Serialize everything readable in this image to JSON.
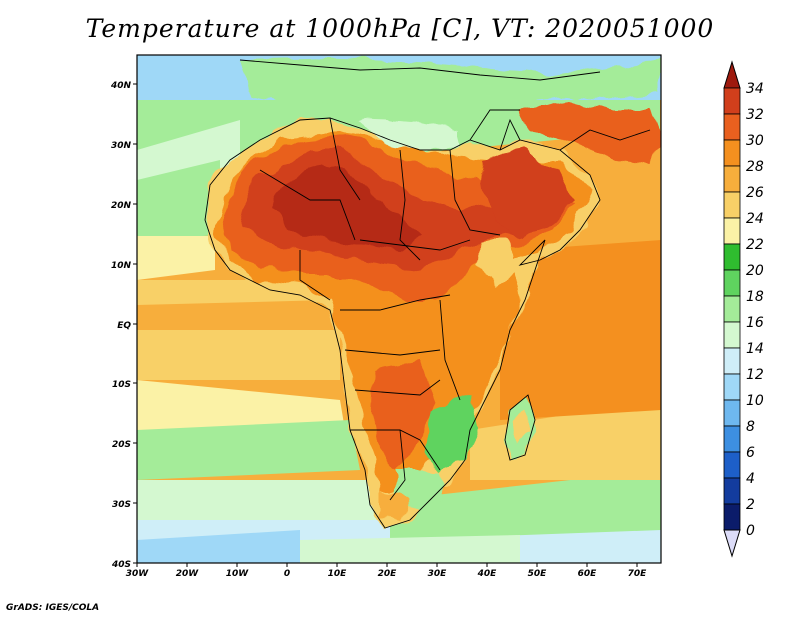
{
  "title": "Temperature at 1000hPa [C], VT: 2020051000",
  "credit": "GrADS: IGES/COLA",
  "map": {
    "lon_labels": [
      "30W",
      "20W",
      "10W",
      "0",
      "10E",
      "20E",
      "30E",
      "40E",
      "50E",
      "60E",
      "70E"
    ],
    "lat_labels": [
      "40N",
      "30N",
      "20N",
      "10N",
      "EQ",
      "10S",
      "20S",
      "30S",
      "40S"
    ]
  },
  "colorbar": {
    "labels": [
      "34",
      "32",
      "30",
      "28",
      "26",
      "24",
      "22",
      "20",
      "18",
      "16",
      "14",
      "12",
      "10",
      "8",
      "6",
      "4",
      "2",
      "0"
    ],
    "colors": [
      "#9e1a0e",
      "#d13f1c",
      "#e9601f",
      "#f4901f",
      "#f7ae3c",
      "#f8d067",
      "#fbf2a6",
      "#2fbd2f",
      "#5fd35f",
      "#a4ec99",
      "#d4f8d0",
      "#cfeef8",
      "#9fd8f7",
      "#6eb8ef",
      "#3d8fe1",
      "#1d5fc8",
      "#133c9e",
      "#0b1c6a",
      "#dcdcf8"
    ]
  },
  "icons": {
    "logo": "grads-credit"
  }
}
